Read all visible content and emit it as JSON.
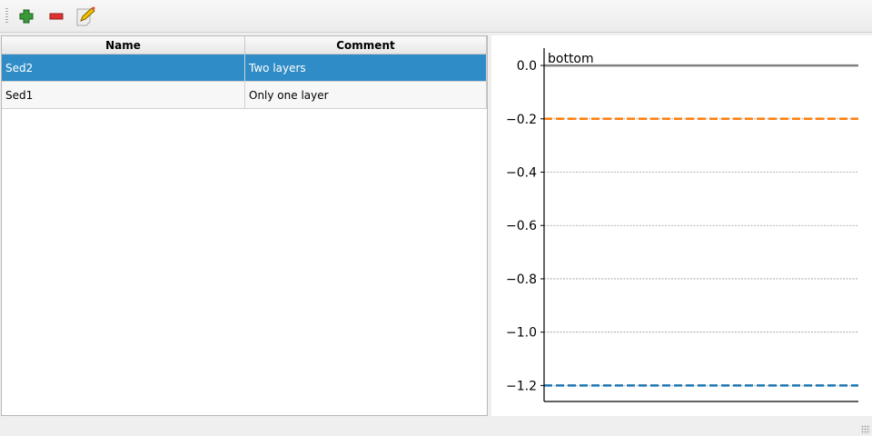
{
  "toolbar": {
    "items": [
      {
        "icon": "plus-icon",
        "color": "#3a9a3a"
      },
      {
        "icon": "minus-icon",
        "color": "#e03030"
      },
      {
        "icon": "edit-icon"
      }
    ]
  },
  "table": {
    "columns": [
      "Name",
      "Comment"
    ],
    "rows": [
      {
        "name": "Sed2",
        "comment": "Two layers",
        "selected": true
      },
      {
        "name": "Sed1",
        "comment": "Only one layer",
        "selected": false
      }
    ]
  },
  "chart_data": {
    "type": "line",
    "ylim": [
      -1.26,
      0.065
    ],
    "yticks": [
      0.0,
      -0.2,
      -0.4,
      -0.6,
      -0.8,
      -1.0,
      -1.2
    ],
    "ytick_labels": [
      "0.0",
      "−0.2",
      "−0.4",
      "−0.6",
      "−0.8",
      "−1.0",
      "−1.2"
    ],
    "grid": true,
    "lines": [
      {
        "y": 0.0,
        "label": "bottom",
        "color": "#808080",
        "style": "solid"
      },
      {
        "y": -0.2,
        "color": "#ff7f0e",
        "style": "dashed"
      },
      {
        "y": -1.2,
        "color": "#1f77b4",
        "style": "dashed"
      }
    ]
  }
}
